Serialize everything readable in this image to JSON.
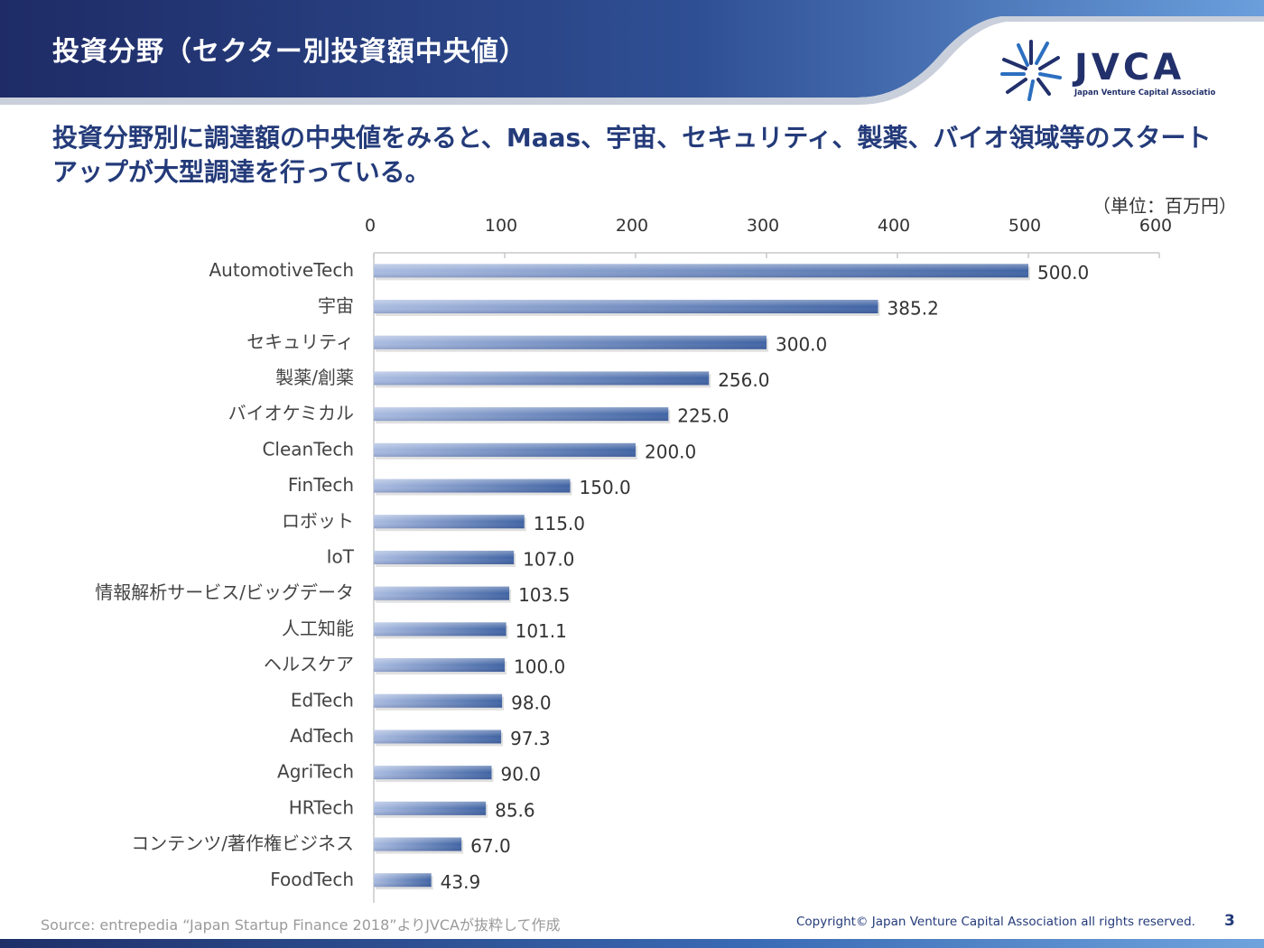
{
  "header": {
    "title": "投資分野（セクター別投資額中央値）",
    "logo_text": "JVCA",
    "logo_subtext": "Japan Venture Capital Associatio"
  },
  "subtitle": "投資分野別に調達額の中央値をみると、Maas、宇宙、セキュリティ、製薬、バイオ領域等のスタートアップが大型調達を行っている。",
  "unit_label": "（単位：百万円）",
  "footer": {
    "source": "Source: entrepedia “Japan Startup Finance 2018”よりJVCAが抜粋して作成",
    "copyright": "Copyright© Japan Venture Capital Association all rights reserved.",
    "page_number": "3"
  },
  "colors": {
    "header_dark": "#1e2b66",
    "header_light": "#5f95d4",
    "bar_light": "#a9bbe0",
    "bar_dark": "#3f63a3",
    "title_text": "#243b7a"
  },
  "chart_data": {
    "type": "bar",
    "orientation": "horizontal",
    "title": "",
    "xlabel": "",
    "ylabel": "",
    "xlim": [
      0,
      600
    ],
    "ticks": [
      0,
      100,
      200,
      300,
      400,
      500,
      600
    ],
    "grid": false,
    "categories": [
      "AutomotiveTech",
      "宇宙",
      "セキュリティ",
      "製薬/創薬",
      "バイオケミカル",
      "CleanTech",
      "FinTech",
      "ロボット",
      "IoT",
      "情報解析サービス/ビッグデータ",
      "人工知能",
      "ヘルスケア",
      "EdTech",
      "AdTech",
      "AgriTech",
      "HRTech",
      "コンテンツ/著作権ビジネス",
      "FoodTech"
    ],
    "values": [
      500.0,
      385.2,
      300.0,
      256.0,
      225.0,
      200.0,
      150.0,
      115.0,
      107.0,
      103.5,
      101.1,
      100.0,
      98.0,
      97.3,
      90.0,
      85.6,
      67.0,
      43.9
    ],
    "value_labels": [
      "500.0",
      "385.2",
      "300.0",
      "256.0",
      "225.0",
      "200.0",
      "150.0",
      "115.0",
      "107.0",
      "103.5",
      "101.1",
      "100.0",
      "98.0",
      "97.3",
      "90.0",
      "85.6",
      "67.0",
      "43.9"
    ]
  }
}
